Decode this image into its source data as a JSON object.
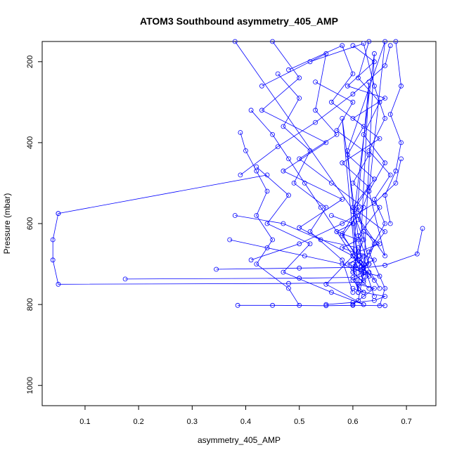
{
  "chart_data": {
    "type": "line",
    "title": "ATOM3 Southbound asymmetry_405_AMP",
    "xlabel": "asymmetry_405_AMP",
    "ylabel": "Pressure (mbar)",
    "xlim": [
      0.02,
      0.755
    ],
    "ylim": [
      1050,
      150
    ],
    "y_inverted": true,
    "x_ticks": [
      0.1,
      0.2,
      0.3,
      0.4,
      0.5,
      0.6,
      0.7
    ],
    "x_tick_labels": [
      "0.1",
      "0.2",
      "0.3",
      "0.4",
      "0.5",
      "0.6",
      "0.7"
    ],
    "y_ticks": [
      200,
      400,
      600,
      800,
      1000
    ],
    "y_tick_labels": [
      "200",
      "400",
      "600",
      "800",
      "1000"
    ],
    "grid": false,
    "series_color": "#0000ff",
    "marker": "open-circle",
    "series": [
      {
        "values": [
          [
            0.38,
            150
          ],
          [
            0.66,
            680
          ],
          [
            0.63,
            520
          ],
          [
            0.66,
            150
          ],
          [
            0.59,
            420
          ],
          [
            0.61,
            700
          ],
          [
            0.6,
            600
          ],
          [
            0.64,
            180
          ],
          [
            0.62,
            730
          ],
          [
            0.58,
            340
          ],
          [
            0.61,
            770
          ],
          [
            0.63,
            250
          ],
          [
            0.6,
            680
          ]
        ]
      },
      {
        "values": [
          [
            0.05,
            575
          ],
          [
            0.04,
            640
          ],
          [
            0.04,
            690
          ],
          [
            0.05,
            750
          ],
          [
            0.48,
            748
          ],
          [
            0.62,
            745
          ],
          [
            0.6,
            720
          ],
          [
            0.63,
            700
          ],
          [
            0.61,
            690
          ]
        ]
      },
      {
        "values": [
          [
            0.175,
            737
          ],
          [
            0.5,
            735
          ],
          [
            0.6,
            733
          ],
          [
            0.62,
            720
          ],
          [
            0.6,
            700
          ]
        ]
      },
      {
        "values": [
          [
            0.44,
            480
          ],
          [
            0.05,
            575
          ]
        ]
      },
      {
        "values": [
          [
            0.385,
            802
          ],
          [
            0.45,
            802
          ],
          [
            0.55,
            803
          ],
          [
            0.6,
            802
          ],
          [
            0.66,
            803
          ]
        ]
      },
      {
        "values": [
          [
            0.73,
            612
          ],
          [
            0.72,
            675
          ],
          [
            0.66,
            703
          ],
          [
            0.62,
            710
          ],
          [
            0.58,
            625
          ],
          [
            0.61,
            560
          ],
          [
            0.63,
            700
          ]
        ]
      },
      {
        "values": [
          [
            0.345,
            713
          ],
          [
            0.5,
            710
          ],
          [
            0.62,
            708
          ],
          [
            0.6,
            680
          ],
          [
            0.64,
            740
          ]
        ]
      },
      {
        "values": [
          [
            0.39,
            375
          ],
          [
            0.4,
            420
          ],
          [
            0.42,
            470
          ],
          [
            0.44,
            520
          ],
          [
            0.42,
            580
          ],
          [
            0.45,
            640
          ],
          [
            0.42,
            700
          ],
          [
            0.48,
            760
          ],
          [
            0.5,
            802
          ]
        ]
      },
      {
        "values": [
          [
            0.46,
            230
          ],
          [
            0.5,
            290
          ],
          [
            0.47,
            360
          ],
          [
            0.52,
            420
          ],
          [
            0.49,
            500
          ],
          [
            0.55,
            560
          ],
          [
            0.52,
            620
          ],
          [
            0.58,
            690
          ],
          [
            0.6,
            770
          ]
        ]
      },
      {
        "values": [
          [
            0.43,
            260
          ],
          [
            0.55,
            180
          ],
          [
            0.53,
            320
          ],
          [
            0.57,
            380
          ],
          [
            0.5,
            440
          ],
          [
            0.56,
            500
          ],
          [
            0.62,
            560
          ],
          [
            0.58,
            630
          ],
          [
            0.62,
            700
          ],
          [
            0.64,
            780
          ]
        ]
      },
      {
        "values": [
          [
            0.48,
            220
          ],
          [
            0.58,
            160
          ],
          [
            0.6,
            230
          ],
          [
            0.56,
            300
          ],
          [
            0.62,
            360
          ],
          [
            0.59,
            430
          ],
          [
            0.64,
            490
          ],
          [
            0.6,
            560
          ],
          [
            0.66,
            620
          ],
          [
            0.62,
            690
          ],
          [
            0.65,
            760
          ]
        ]
      },
      {
        "values": [
          [
            0.52,
            200
          ],
          [
            0.62,
            155
          ],
          [
            0.64,
            260
          ],
          [
            0.66,
            340
          ],
          [
            0.63,
            420
          ],
          [
            0.67,
            480
          ],
          [
            0.64,
            540
          ],
          [
            0.66,
            600
          ],
          [
            0.63,
            670
          ],
          [
            0.66,
            760
          ],
          [
            0.65,
            803
          ]
        ]
      },
      {
        "values": [
          [
            0.68,
            150
          ],
          [
            0.69,
            260
          ],
          [
            0.67,
            330
          ],
          [
            0.69,
            400
          ],
          [
            0.68,
            470
          ],
          [
            0.66,
            530
          ],
          [
            0.67,
            600
          ]
        ]
      },
      {
        "values": [
          [
            0.41,
            320
          ],
          [
            0.45,
            380
          ],
          [
            0.48,
            440
          ],
          [
            0.51,
            500
          ],
          [
            0.54,
            560
          ],
          [
            0.57,
            620
          ],
          [
            0.6,
            680
          ],
          [
            0.62,
            740
          ]
        ]
      },
      {
        "values": [
          [
            0.37,
            640
          ],
          [
            0.44,
            660
          ],
          [
            0.51,
            680
          ],
          [
            0.58,
            700
          ],
          [
            0.62,
            720
          ],
          [
            0.65,
            730
          ]
        ]
      },
      {
        "values": [
          [
            0.38,
            580
          ],
          [
            0.47,
            600
          ],
          [
            0.54,
            640
          ],
          [
            0.61,
            660
          ],
          [
            0.6,
            720
          ],
          [
            0.63,
            760
          ]
        ]
      },
      {
        "values": [
          [
            0.53,
            250
          ],
          [
            0.6,
            300
          ],
          [
            0.57,
            370
          ],
          [
            0.63,
            430
          ],
          [
            0.6,
            500
          ],
          [
            0.65,
            560
          ],
          [
            0.61,
            630
          ],
          [
            0.63,
            700
          ]
        ]
      },
      {
        "values": [
          [
            0.63,
            150
          ],
          [
            0.61,
            240
          ],
          [
            0.65,
            300
          ],
          [
            0.62,
            380
          ],
          [
            0.66,
            450
          ],
          [
            0.63,
            520
          ],
          [
            0.61,
            590
          ],
          [
            0.64,
            650
          ],
          [
            0.62,
            720
          ],
          [
            0.61,
            790
          ]
        ]
      },
      {
        "values": [
          [
            0.45,
            150
          ],
          [
            0.5,
            240
          ],
          [
            0.43,
            320
          ],
          [
            0.55,
            400
          ],
          [
            0.47,
            470
          ],
          [
            0.58,
            540
          ],
          [
            0.5,
            610
          ],
          [
            0.6,
            680
          ],
          [
            0.55,
            750
          ],
          [
            0.62,
            800
          ]
        ]
      },
      {
        "values": [
          [
            0.6,
            160
          ],
          [
            0.64,
            200
          ],
          [
            0.59,
            260
          ],
          [
            0.66,
            290
          ],
          [
            0.6,
            340
          ],
          [
            0.65,
            390
          ],
          [
            0.58,
            450
          ],
          [
            0.63,
            510
          ],
          [
            0.6,
            570
          ],
          [
            0.62,
            640
          ],
          [
            0.6,
            710
          ],
          [
            0.61,
            770
          ]
        ]
      },
      {
        "values": [
          [
            0.42,
            460
          ],
          [
            0.48,
            530
          ],
          [
            0.44,
            600
          ],
          [
            0.52,
            650
          ],
          [
            0.47,
            720
          ],
          [
            0.56,
            770
          ],
          [
            0.62,
            800
          ]
        ]
      },
      {
        "values": [
          [
            0.62,
            620
          ],
          [
            0.65,
            650
          ],
          [
            0.61,
            670
          ],
          [
            0.64,
            690
          ],
          [
            0.6,
            710
          ],
          [
            0.63,
            730
          ],
          [
            0.61,
            750
          ],
          [
            0.64,
            760
          ],
          [
            0.62,
            780
          ],
          [
            0.6,
            800
          ]
        ]
      },
      {
        "values": [
          [
            0.56,
            580
          ],
          [
            0.6,
            600
          ],
          [
            0.57,
            620
          ],
          [
            0.61,
            640
          ],
          [
            0.58,
            660
          ],
          [
            0.62,
            680
          ],
          [
            0.59,
            700
          ],
          [
            0.63,
            720
          ],
          [
            0.6,
            740
          ],
          [
            0.62,
            770
          ]
        ]
      },
      {
        "values": [
          [
            0.39,
            480
          ],
          [
            0.46,
            410
          ],
          [
            0.53,
            350
          ],
          [
            0.6,
            280
          ],
          [
            0.66,
            210
          ],
          [
            0.67,
            160
          ]
        ]
      },
      {
        "values": [
          [
            0.41,
            690
          ],
          [
            0.5,
            650
          ],
          [
            0.58,
            600
          ],
          [
            0.64,
            550
          ],
          [
            0.68,
            500
          ],
          [
            0.69,
            440
          ]
        ]
      },
      {
        "values": [
          [
            0.55,
            800
          ],
          [
            0.6,
            795
          ],
          [
            0.64,
            790
          ],
          [
            0.66,
            780
          ],
          [
            0.62,
            770
          ],
          [
            0.6,
            760
          ]
        ]
      }
    ]
  }
}
